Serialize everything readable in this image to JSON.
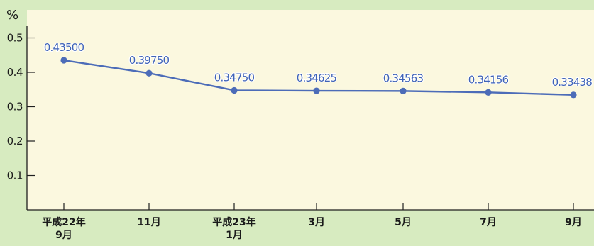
{
  "chart_data": {
    "type": "line",
    "unit": "%",
    "ylim": [
      0,
      0.5
    ],
    "yticks": [
      "0.1",
      "0.2",
      "0.3",
      "0.4",
      "0.5"
    ],
    "categories": [
      [
        "平成22年",
        "9月"
      ],
      [
        "11月"
      ],
      [
        "平成23年",
        "1月"
      ],
      [
        "3月"
      ],
      [
        "5月"
      ],
      [
        "7月"
      ],
      [
        "9月"
      ]
    ],
    "series": [
      {
        "values": [
          0.435,
          0.3975,
          0.3475,
          0.34625,
          0.34563,
          0.34156,
          0.33438
        ],
        "labels": [
          "0.43500",
          "0.39750",
          "0.34750",
          "0.34625",
          "0.34563",
          "0.34156",
          "0.33438"
        ],
        "color": "#4c6cb8"
      }
    ],
    "colors": {
      "plot_background": "#fbf8df",
      "page_background": "#d7ebc0",
      "line": "#4c6cb8"
    }
  }
}
